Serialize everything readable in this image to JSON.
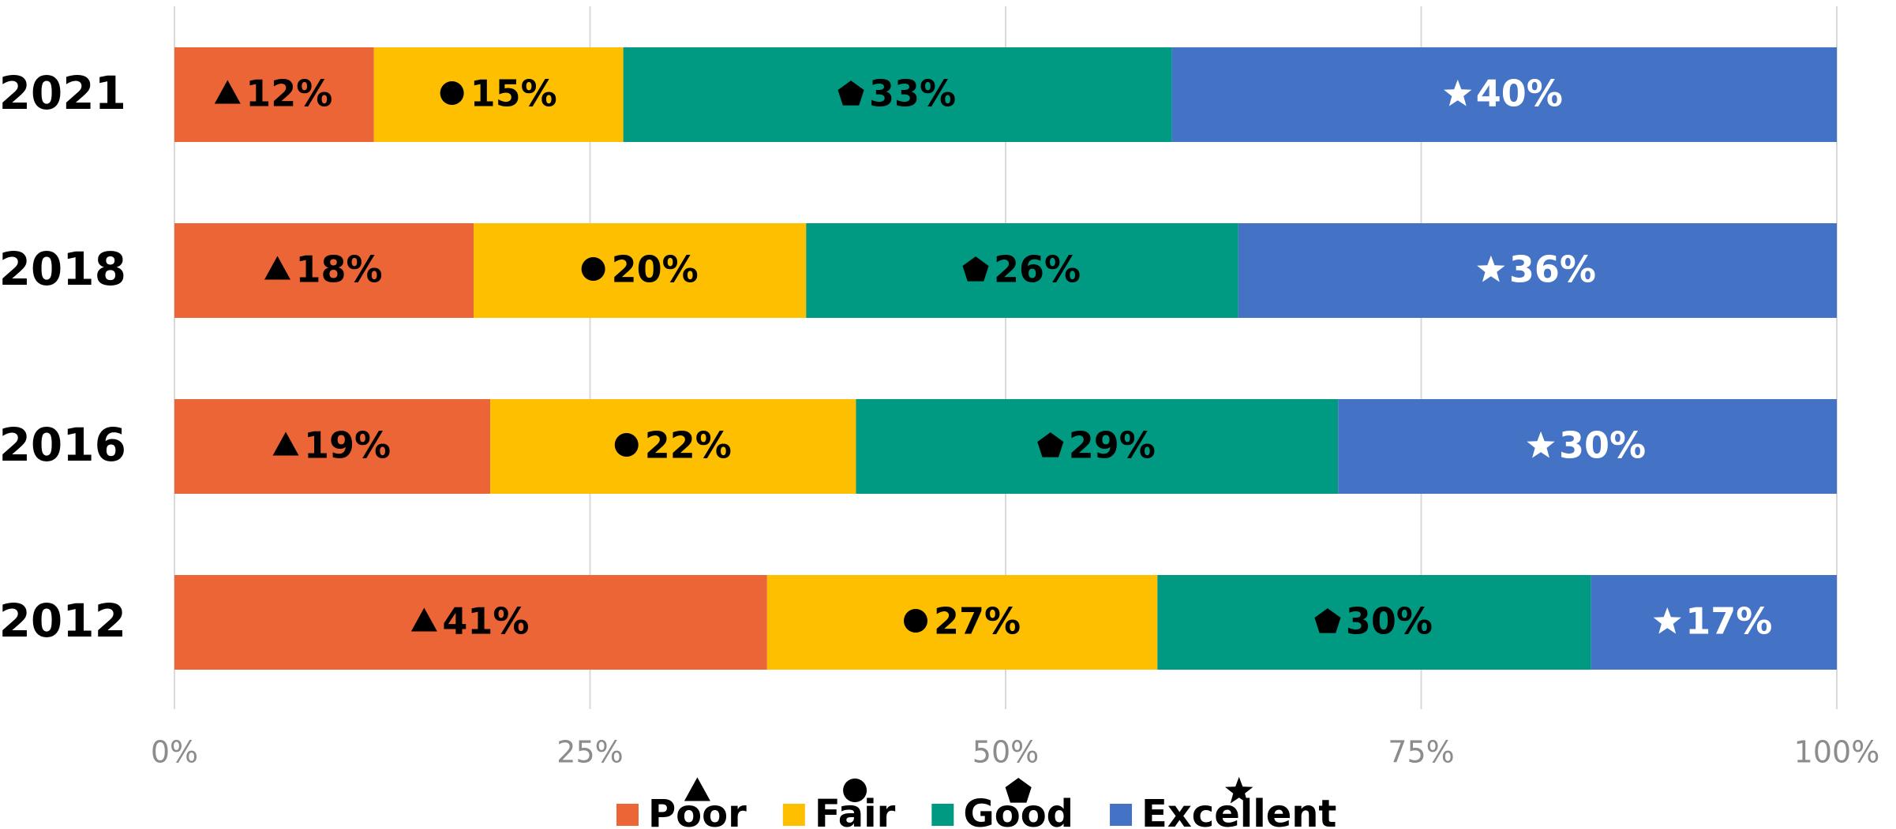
{
  "chart_data": {
    "type": "bar",
    "orientation": "horizontal",
    "stacking": "percent",
    "categories": [
      "2021",
      "2018",
      "2016",
      "2012"
    ],
    "series": [
      {
        "name": "Poor",
        "color": "#ec6536",
        "marker": "triangle",
        "label_color": "#000000",
        "values": [
          12,
          18,
          19,
          41
        ],
        "value_labels": [
          "12%",
          "18%",
          "19%",
          "41%"
        ]
      },
      {
        "name": "Fair",
        "color": "#fdbf00",
        "marker": "circle",
        "label_color": "#000000",
        "values": [
          15,
          20,
          22,
          27
        ],
        "value_labels": [
          "15%",
          "20%",
          "22%",
          "27%"
        ]
      },
      {
        "name": "Good",
        "color": "#009a82",
        "marker": "pentagon",
        "label_color": "#000000",
        "values": [
          33,
          26,
          29,
          30
        ],
        "value_labels": [
          "33%",
          "26%",
          "29%",
          "30%"
        ]
      },
      {
        "name": "Excellent",
        "color": "#4472c4",
        "marker": "star",
        "label_color": "#ffffff",
        "values": [
          40,
          36,
          30,
          17
        ],
        "value_labels": [
          "40%",
          "36%",
          "30%",
          "17%"
        ]
      }
    ],
    "xlim": [
      0,
      100
    ],
    "xticks": [
      {
        "value": 0,
        "label": "0%"
      },
      {
        "value": 25,
        "label": "25%"
      },
      {
        "value": 50,
        "label": "50%"
      },
      {
        "value": 75,
        "label": "75%"
      },
      {
        "value": 100,
        "label": "100%"
      }
    ],
    "grid": true,
    "legend": "bottom"
  }
}
